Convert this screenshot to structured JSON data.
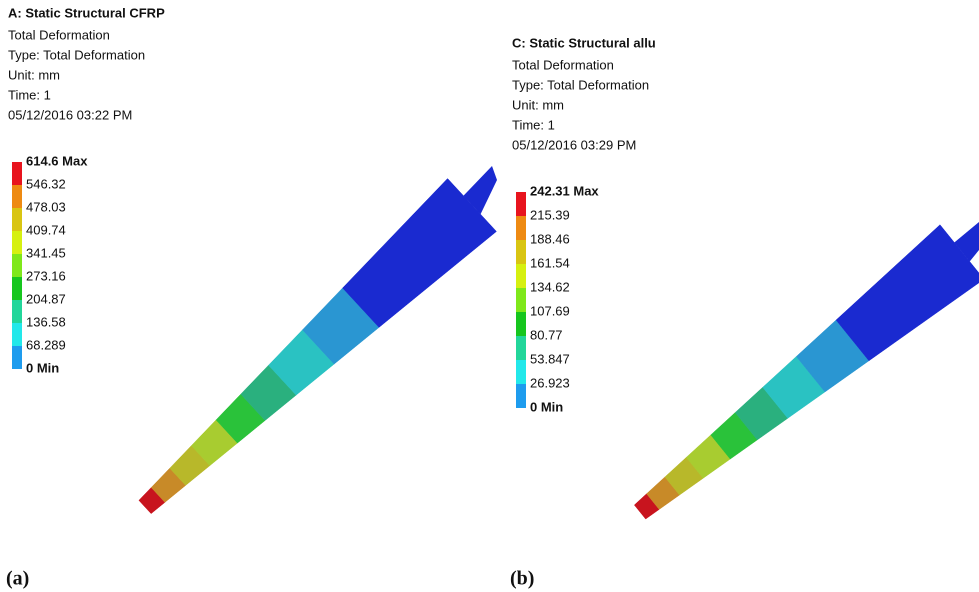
{
  "panel_a": {
    "title": "A: Static Structural CFRP",
    "lines": [
      "Total Deformation",
      "Type: Total Deformation",
      "Unit: mm",
      "Time: 1",
      "05/12/2016 03:22 PM"
    ],
    "legend": [
      "614.6 Max",
      "546.32",
      "478.03",
      "409.74",
      "341.45",
      "273.16",
      "204.87",
      "136.58",
      "68.289",
      "0 Min"
    ],
    "caption": "(a)"
  },
  "panel_b": {
    "title": "C: Static Structural allu",
    "lines": [
      "Total Deformation",
      "Type: Total Deformation",
      "Unit: mm",
      "Time: 1",
      "05/12/2016 03:29 PM"
    ],
    "legend": [
      "242.31 Max",
      "215.39",
      "188.46",
      "161.54",
      "134.62",
      "107.69",
      "80.77",
      "53.847",
      "26.923",
      "0 Min"
    ],
    "caption": "(b)"
  }
}
